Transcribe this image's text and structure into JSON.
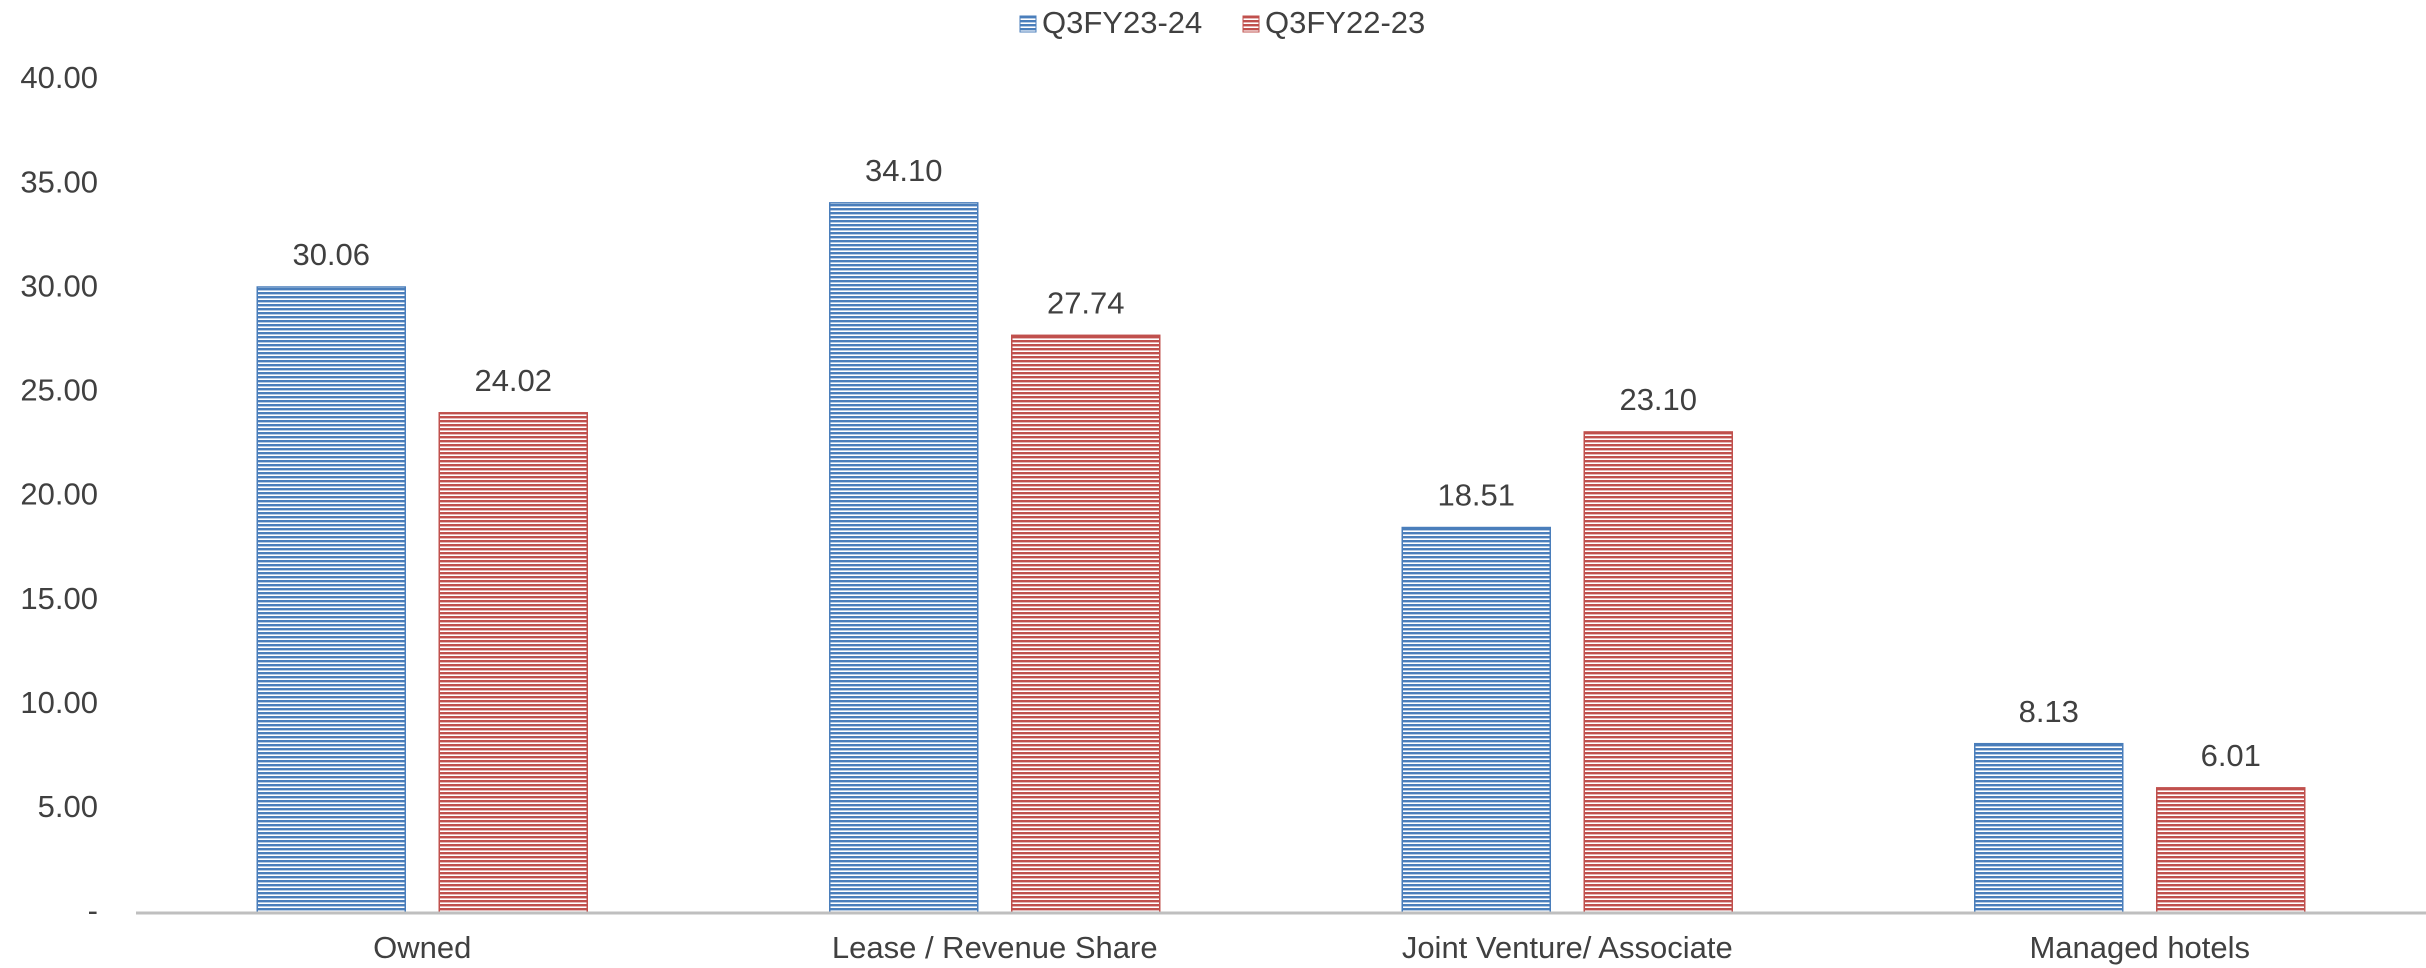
{
  "chart_data": {
    "type": "bar",
    "categories": [
      "Owned",
      "Lease / Revenue Share",
      "Joint Venture/ Associate",
      "Managed hotels"
    ],
    "series": [
      {
        "name": "Q3FY23-24",
        "color": "#4a7ebb",
        "values": [
          30.06,
          34.1,
          18.51,
          8.13
        ],
        "value_labels": [
          "30.06",
          "34.10",
          "18.51",
          "8.13"
        ]
      },
      {
        "name": "Q3FY22-23",
        "color": "#c0504d",
        "values": [
          24.02,
          27.74,
          23.1,
          6.01
        ],
        "value_labels": [
          "24.02",
          "27.74",
          "23.10",
          "6.01"
        ]
      }
    ],
    "ylim": [
      0,
      40
    ],
    "yticks": [
      {
        "value": 0,
        "label": "-"
      },
      {
        "value": 5,
        "label": "5.00"
      },
      {
        "value": 10,
        "label": "10.00"
      },
      {
        "value": 15,
        "label": "15.00"
      },
      {
        "value": 20,
        "label": "20.00"
      },
      {
        "value": 25,
        "label": "25.00"
      },
      {
        "value": 30,
        "label": "30.00"
      },
      {
        "value": 35,
        "label": "35.00"
      },
      {
        "value": 40,
        "label": "40.00"
      }
    ],
    "grid": false,
    "legend": "top"
  }
}
